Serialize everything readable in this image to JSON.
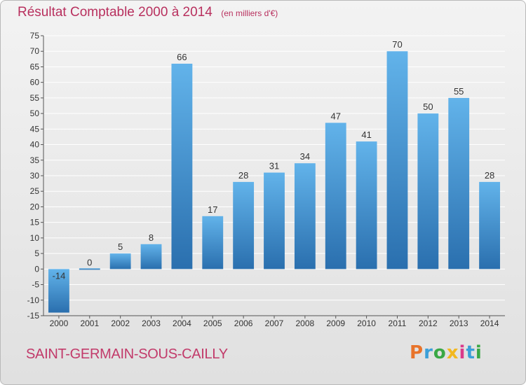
{
  "title": "Résultat Comptable 2000 à 2014",
  "unit_note": "(en milliers d'€)",
  "commune": "SAINT-GERMAIN-SOUS-CAILLY",
  "logo": {
    "text": "Proxiti",
    "letter_colors": [
      "#e8732a",
      "#3b9fd8",
      "#3aa845",
      "#f2b820",
      "#d93a8a",
      "#3b9fd8",
      "#3aa845"
    ]
  },
  "colors": {
    "bar": "#3e95d6",
    "bar_dark": "#2a6fae",
    "bar_light": "#62b3ea",
    "text": "#333333",
    "title": "#b8305e"
  },
  "chart_data": {
    "type": "bar",
    "categories": [
      "2000",
      "2001",
      "2002",
      "2003",
      "2004",
      "2005",
      "2006",
      "2007",
      "2008",
      "2009",
      "2010",
      "2011",
      "2012",
      "2013",
      "2014"
    ],
    "values": [
      -14,
      0,
      5,
      8,
      66,
      17,
      28,
      31,
      34,
      47,
      41,
      70,
      50,
      55,
      28
    ],
    "data_labels": [
      "-14",
      "0",
      "5",
      "8",
      "66",
      "17",
      "28",
      "31",
      "34",
      "47",
      "41",
      "70",
      "50",
      "55",
      "28"
    ],
    "yticks": [
      -15,
      -10,
      -5,
      0,
      5,
      10,
      15,
      20,
      25,
      30,
      35,
      40,
      45,
      50,
      55,
      60,
      65,
      70,
      75
    ],
    "ylim": [
      -15,
      75
    ],
    "title": "Résultat Comptable 2000 à 2014",
    "xlabel": "",
    "ylabel": "",
    "grid": true
  }
}
